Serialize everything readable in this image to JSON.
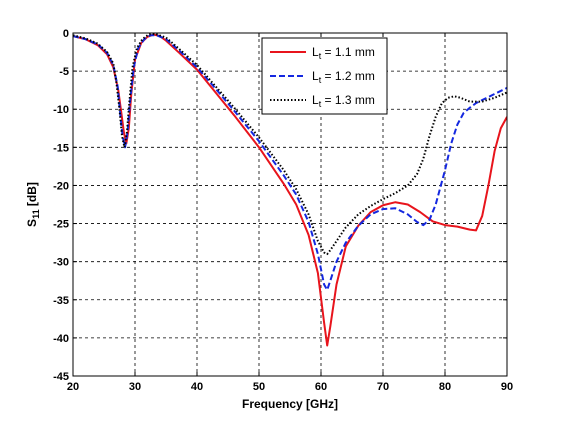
{
  "chart_data": {
    "type": "line",
    "title": "",
    "xlabel": "Frequency [GHz]",
    "ylabel": "S11 [dB]",
    "ylabel_main": "S",
    "ylabel_sub": "11",
    "ylabel_unit": " [dB]",
    "xlim": [
      20,
      90
    ],
    "ylim": [
      -45,
      0
    ],
    "xticks": [
      20,
      30,
      40,
      50,
      60,
      70,
      80,
      90
    ],
    "yticks": [
      0,
      -5,
      -10,
      -15,
      -20,
      -25,
      -30,
      -35,
      -40,
      -45
    ],
    "grid": true,
    "grid_style": "dashed",
    "legend_position": "top-right",
    "series": [
      {
        "name": "Lt = 1.1 mm",
        "legend_main": "L",
        "legend_sub": "t",
        "legend_rest": " = 1.1 mm",
        "color": "#e8141c",
        "dash": "solid",
        "x": [
          20,
          22,
          24,
          25.5,
          26.5,
          27.3,
          27.8,
          28.2,
          28.6,
          29.0,
          29.4,
          30.0,
          31.0,
          32.0,
          33.0,
          34.0,
          35,
          37,
          40,
          43,
          46,
          50,
          54,
          56,
          58,
          59.5,
          60.5,
          61.0,
          61.5,
          62.5,
          64,
          66,
          68,
          70,
          72,
          74,
          76,
          78,
          80,
          82,
          84,
          85,
          86,
          87,
          88,
          89,
          90
        ],
        "y": [
          -0.4,
          -0.8,
          -1.6,
          -2.8,
          -4.5,
          -7.5,
          -10.5,
          -13.0,
          -14.5,
          -12.5,
          -8.0,
          -3.5,
          -1.3,
          -0.5,
          -0.2,
          -0.4,
          -1.0,
          -2.5,
          -4.8,
          -7.8,
          -10.8,
          -15.0,
          -19.8,
          -22.5,
          -26.5,
          -31.5,
          -38.0,
          -41.0,
          -38.5,
          -33.0,
          -28.0,
          -25.3,
          -23.5,
          -22.6,
          -22.2,
          -22.5,
          -23.5,
          -24.7,
          -25.2,
          -25.4,
          -25.8,
          -25.9,
          -24.0,
          -20.0,
          -15.5,
          -12.5,
          -11.0
        ]
      },
      {
        "name": "Lt = 1.2 mm",
        "legend_main": "L",
        "legend_sub": "t",
        "legend_rest": " = 1.2 mm",
        "color": "#1428e0",
        "dash": "dashed",
        "x": [
          20,
          22,
          24,
          25.5,
          26.5,
          27.2,
          27.6,
          28.0,
          28.4,
          28.8,
          29.2,
          29.8,
          30.5,
          31.5,
          32.5,
          33.5,
          35,
          37,
          40,
          43,
          46,
          50,
          54,
          56,
          58,
          59.5,
          60.5,
          61.0,
          61.5,
          62.5,
          64,
          66,
          68,
          70,
          72,
          74,
          75.5,
          76.5,
          77.5,
          78.5,
          80,
          81,
          82,
          83,
          84,
          85,
          86,
          88,
          90
        ],
        "y": [
          -0.4,
          -0.8,
          -1.5,
          -2.6,
          -4.2,
          -7.0,
          -10.5,
          -13.5,
          -15.0,
          -13.0,
          -9.0,
          -4.5,
          -2.0,
          -0.8,
          -0.3,
          -0.3,
          -0.8,
          -2.2,
          -4.5,
          -7.3,
          -10.2,
          -14.2,
          -18.7,
          -21.2,
          -24.8,
          -29.0,
          -33.0,
          -33.7,
          -32.5,
          -30.0,
          -27.5,
          -25.3,
          -23.8,
          -23.1,
          -23.0,
          -23.8,
          -24.8,
          -25.2,
          -24.5,
          -22.5,
          -18.0,
          -14.5,
          -12.0,
          -10.5,
          -9.8,
          -9.2,
          -8.8,
          -8.0,
          -7.2
        ]
      },
      {
        "name": "Lt = 1.3 mm",
        "legend_main": "L",
        "legend_sub": "t",
        "legend_rest": " = 1.3 mm",
        "color": "#000000",
        "dash": "dotted",
        "x": [
          20,
          22,
          24,
          25.5,
          26.5,
          27.0,
          27.5,
          27.9,
          28.3,
          28.7,
          29.1,
          29.6,
          30.3,
          31.2,
          32.2,
          33.2,
          35,
          37,
          40,
          43,
          46,
          50,
          54,
          56,
          58,
          59.5,
          60.5,
          61.0,
          61.5,
          62.5,
          64,
          66,
          68,
          70,
          72,
          74,
          75.5,
          76.5,
          77.5,
          78.5,
          79.5,
          80.5,
          81.5,
          82.5,
          84,
          86,
          88,
          90
        ],
        "y": [
          -0.3,
          -0.7,
          -1.4,
          -2.5,
          -4.0,
          -6.5,
          -10.0,
          -13.5,
          -15.0,
          -13.0,
          -9.0,
          -4.5,
          -2.0,
          -0.8,
          -0.2,
          -0.1,
          -0.6,
          -2.0,
          -4.2,
          -7.0,
          -9.8,
          -13.7,
          -18.0,
          -20.5,
          -23.8,
          -27.3,
          -28.8,
          -29.0,
          -28.5,
          -27.3,
          -25.5,
          -23.8,
          -22.7,
          -21.8,
          -21.0,
          -20.0,
          -18.5,
          -16.5,
          -13.5,
          -11.0,
          -9.2,
          -8.5,
          -8.3,
          -8.5,
          -9.0,
          -9.0,
          -8.5,
          -7.8
        ]
      }
    ]
  }
}
